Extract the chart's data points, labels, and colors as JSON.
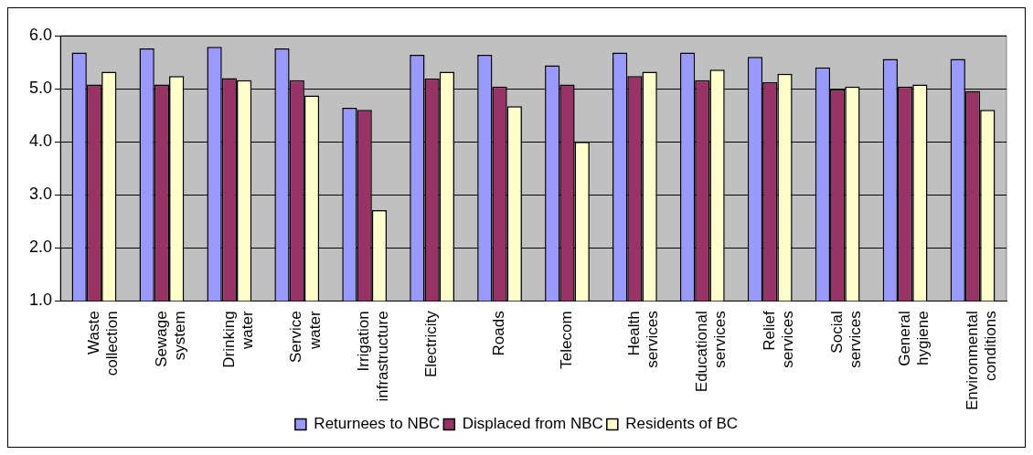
{
  "chart_data": {
    "type": "bar",
    "categories": [
      "Waste collection",
      "Sewage system",
      "Drinking water",
      "Service water",
      "Irrigation infrastructure",
      "Electricity",
      "Roads",
      "Telecom",
      "Health services",
      "Educational services",
      "Relief services",
      "Social services",
      "General hygiene",
      "Environmental conditions"
    ],
    "series": [
      {
        "name": "Returnees to NBC",
        "color": "#9999ff",
        "values": [
          5.68,
          5.76,
          5.79,
          5.76,
          4.64,
          5.64,
          5.64,
          5.44,
          5.68,
          5.68,
          5.6,
          5.4,
          5.56,
          5.56
        ]
      },
      {
        "name": "Displaced from NBC",
        "color": "#993366",
        "values": [
          5.08,
          5.08,
          5.2,
          5.16,
          4.6,
          5.19,
          5.04,
          5.08,
          5.24,
          5.16,
          5.12,
          4.99,
          5.04,
          4.96
        ]
      },
      {
        "name": "Residents of BC",
        "color": "#ffffcc",
        "values": [
          5.32,
          5.24,
          5.16,
          4.87,
          2.71,
          5.32,
          4.67,
          4.0,
          5.32,
          5.36,
          5.28,
          5.04,
          5.08,
          4.6
        ]
      }
    ],
    "ylim": [
      1,
      6
    ],
    "yticks": [
      {
        "value": 1,
        "label": "1.0"
      },
      {
        "value": 2,
        "label": "2.0"
      },
      {
        "value": 3,
        "label": "3.0"
      },
      {
        "value": 4,
        "label": "4.0"
      },
      {
        "value": 5,
        "label": "5.0"
      },
      {
        "value": 6,
        "label": "6.0"
      }
    ],
    "grid": "y",
    "legend": "bottom"
  }
}
